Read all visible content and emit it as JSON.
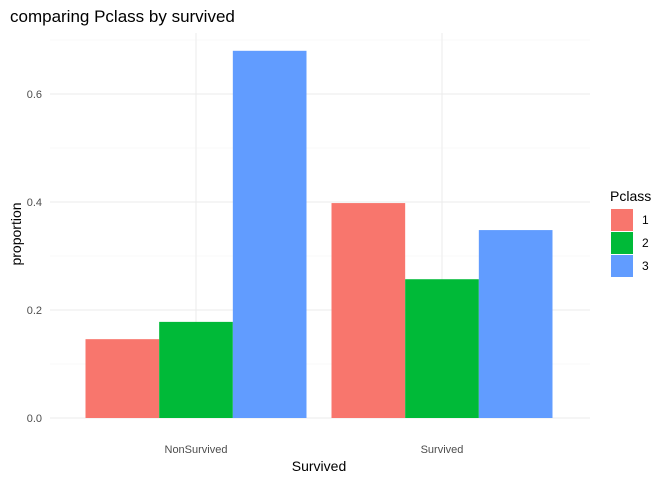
{
  "chart_data": {
    "type": "bar",
    "title": "comparing Pclass by survived",
    "xlabel": "Survived",
    "ylabel": "proportion",
    "categories": [
      "NonSurvived",
      "Survived"
    ],
    "series": [
      {
        "name": "1",
        "values": [
          0.146,
          0.398
        ],
        "color": "#F8766D"
      },
      {
        "name": "2",
        "values": [
          0.178,
          0.257
        ],
        "color": "#00BA38"
      },
      {
        "name": "3",
        "values": [
          0.68,
          0.348
        ],
        "color": "#619CFF"
      }
    ],
    "ylim": [
      0,
      0.7
    ],
    "yticks": [
      0.0,
      0.2,
      0.4,
      0.6
    ],
    "ytick_labels": [
      "0.0",
      "0.2",
      "0.4",
      "0.6"
    ],
    "grid": true,
    "legend": {
      "title": "Pclass",
      "placement": "right"
    }
  }
}
